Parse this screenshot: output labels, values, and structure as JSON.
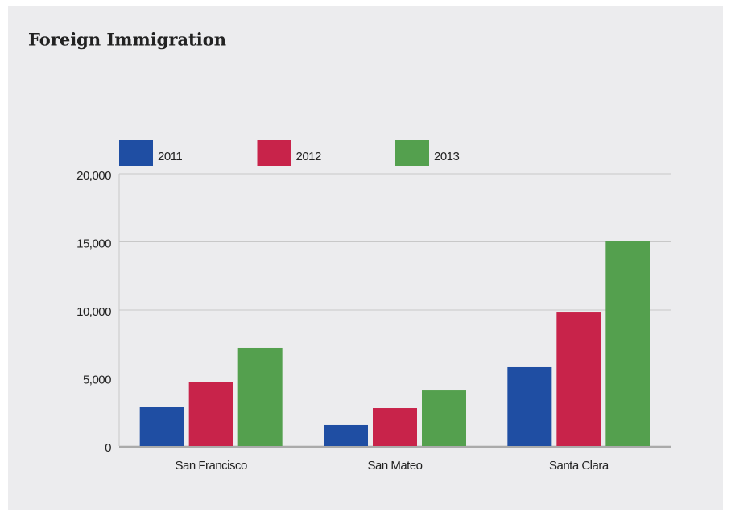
{
  "chart_data": {
    "type": "bar",
    "title": "Foreign Immigration",
    "categories": [
      "San Francisco",
      "San Mateo",
      "Santa Clara"
    ],
    "series": [
      {
        "name": "2011",
        "color": "#1f4ea3",
        "values": [
          2840,
          1540,
          5800
        ]
      },
      {
        "name": "2012",
        "color": "#c8234a",
        "values": [
          4675,
          2780,
          9820
        ]
      },
      {
        "name": "2013",
        "color": "#54a04e",
        "values": [
          7220,
          4080,
          15030
        ]
      }
    ],
    "ylim": [
      0,
      20000
    ],
    "yticks": [
      0,
      {
        "value": 5000,
        "label": "5,000"
      },
      {
        "value": 10000,
        "label": "10,000"
      },
      {
        "value": 15000,
        "label": "15,000"
      },
      {
        "value": 20000,
        "label": "20,000"
      }
    ],
    "grid": true,
    "legend": "top"
  }
}
